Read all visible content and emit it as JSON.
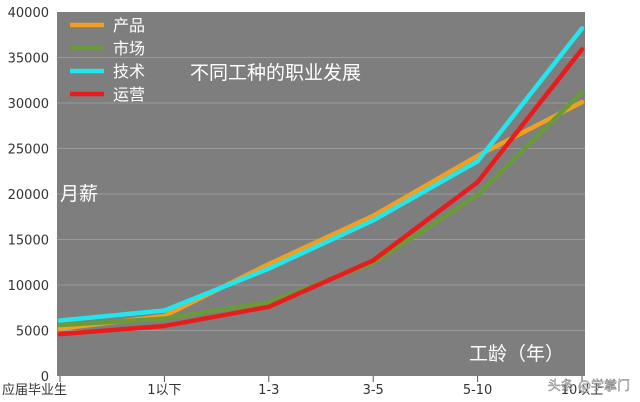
{
  "chart_data": {
    "type": "line",
    "title": "不同工种的职业发展",
    "ylabel": "月薪",
    "xlabel": "工龄（年）",
    "categories": [
      "应届毕业生",
      "1以下",
      "1-3",
      "3-5",
      "5-10",
      "10以上"
    ],
    "ylim": [
      0,
      40000
    ],
    "yticks": [
      0,
      5000,
      10000,
      15000,
      20000,
      25000,
      30000,
      35000,
      40000
    ],
    "grid": true,
    "legend_position": "top-left",
    "series": [
      {
        "name": "产品",
        "color": "#f0a020",
        "values": [
          5200,
          6600,
          12300,
          17600,
          24200,
          30100
        ]
      },
      {
        "name": "市场",
        "color": "#6a9a3a",
        "values": [
          5600,
          6300,
          8100,
          12400,
          19900,
          31200
        ]
      },
      {
        "name": "技术",
        "color": "#22e6ee",
        "values": [
          6100,
          7200,
          11800,
          17100,
          23600,
          38200
        ]
      },
      {
        "name": "运营",
        "color": "#e81c1c",
        "values": [
          4600,
          5500,
          7600,
          12700,
          21300,
          35900
        ]
      }
    ],
    "watermark": "头条 @学掌门"
  }
}
